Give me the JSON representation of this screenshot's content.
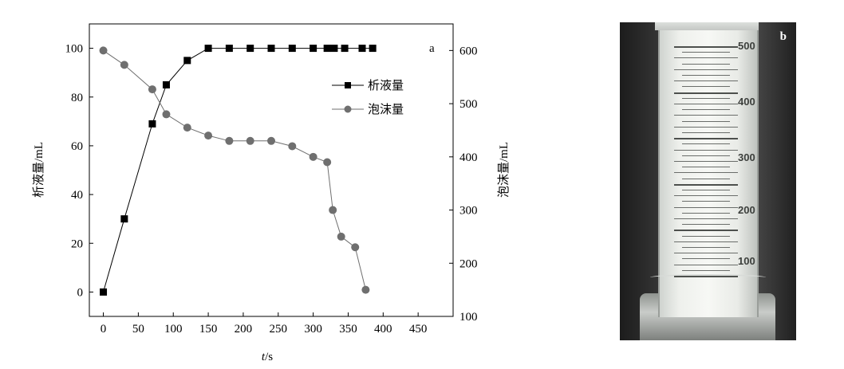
{
  "chart_data": {
    "type": "line",
    "panel_label": "a",
    "xlabel": "t/s",
    "ylabel_left": "析液量/mL",
    "ylabel_right": "泡沫量/mL",
    "xlim": [
      -20,
      500
    ],
    "ylim_left": [
      -10,
      110
    ],
    "ylim_right": [
      100,
      650
    ],
    "x_ticks": [
      0,
      50,
      100,
      150,
      200,
      250,
      300,
      350,
      400,
      450
    ],
    "y_ticks_left": [
      0,
      20,
      40,
      60,
      80,
      100
    ],
    "y_ticks_right": [
      100,
      200,
      300,
      400,
      500,
      600
    ],
    "legend_position": "top-right",
    "grid": false,
    "series": [
      {
        "name": "析液量",
        "axis": "left",
        "marker": "square",
        "color": "#000000",
        "x": [
          0,
          30,
          70,
          90,
          120,
          150,
          180,
          210,
          240,
          270,
          300,
          320,
          330,
          345,
          370,
          385
        ],
        "y": [
          0,
          30,
          69,
          85,
          95,
          100,
          100,
          100,
          100,
          100,
          100,
          100,
          100,
          100,
          100,
          100
        ]
      },
      {
        "name": "泡沫量",
        "axis": "right",
        "marker": "circle",
        "color": "#6f6f6f",
        "x": [
          0,
          30,
          70,
          90,
          120,
          150,
          180,
          210,
          240,
          270,
          300,
          320,
          328,
          340,
          360,
          375
        ],
        "y": [
          600,
          573,
          527,
          480,
          455,
          440,
          430,
          430,
          430,
          420,
          400,
          390,
          300,
          250,
          230,
          150
        ]
      }
    ]
  },
  "photo": {
    "panel_label": "b",
    "scale_labels": [
      "500",
      "400",
      "300",
      "200",
      "100"
    ]
  }
}
